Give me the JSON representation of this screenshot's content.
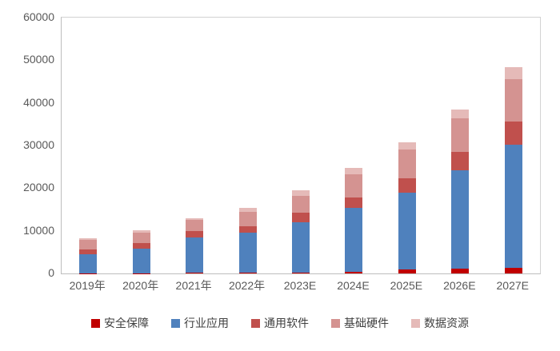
{
  "chart_data": {
    "type": "bar",
    "stacked": true,
    "title": "",
    "xlabel": "",
    "ylabel": "",
    "categories": [
      "2019年",
      "2020年",
      "2021年",
      "2022年",
      "2023E",
      "2024E",
      "2025E",
      "2026E",
      "2027E"
    ],
    "series": [
      {
        "name": "安全保障",
        "color": "#c00000",
        "values": [
          80,
          90,
          100,
          150,
          200,
          300,
          900,
          1200,
          1400
        ]
      },
      {
        "name": "行业应用",
        "color": "#4f81bd",
        "values": [
          4400,
          5800,
          8400,
          9400,
          11800,
          15100,
          18100,
          22900,
          28700
        ]
      },
      {
        "name": "通用软件",
        "color": "#c0504d",
        "values": [
          1100,
          1150,
          1400,
          1550,
          2300,
          2400,
          3400,
          4400,
          5500
        ]
      },
      {
        "name": "基础硬件",
        "color": "#d49391",
        "values": [
          2350,
          2550,
          2600,
          3250,
          3900,
          5400,
          6700,
          7900,
          10050
        ]
      },
      {
        "name": "数据资源",
        "color": "#e5bab8",
        "values": [
          270,
          600,
          450,
          950,
          1250,
          1550,
          1700,
          2000,
          2700
        ]
      }
    ],
    "totals": [
      8200,
      10190,
      12950,
      15300,
      19450,
      24750,
      30800,
      38400,
      48350
    ],
    "ylim": [
      0,
      60000
    ],
    "ytick_interval": 10000,
    "yticks": [
      "0",
      "10000",
      "20000",
      "30000",
      "40000",
      "50000",
      "60000"
    ],
    "grid": false,
    "legend_position": "bottom",
    "legend_order": [
      "安全保障",
      "行业应用",
      "通用软件",
      "基础硬件",
      "数据资源"
    ],
    "layout": {
      "axis_text_color": "#595959",
      "legend_text_color": "#404040",
      "axis_line_color": "#bdbdbd",
      "plot_border_color": "#d2d2d2",
      "background_color": "#ffffff"
    }
  }
}
